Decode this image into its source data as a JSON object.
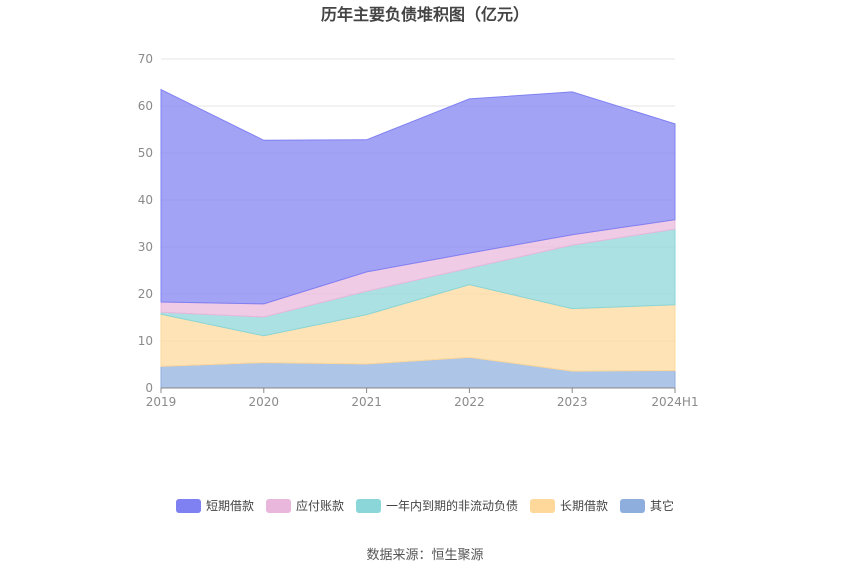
{
  "chart_data": {
    "type": "area",
    "stacked": true,
    "title": "历年主要负债堆积图（亿元）",
    "categories": [
      "2019",
      "2020",
      "2021",
      "2022",
      "2023",
      "2024H1"
    ],
    "ylim": [
      0,
      70
    ],
    "yticks": [
      0,
      10,
      20,
      30,
      40,
      50,
      60,
      70
    ],
    "grid": true,
    "legend_position": "bottom",
    "series": [
      {
        "name": "其它",
        "values": [
          4.6,
          5.4,
          5.1,
          6.5,
          3.6,
          3.7
        ],
        "color": "#8eaede"
      },
      {
        "name": "长期借款",
        "values": [
          11.1,
          5.7,
          10.5,
          15.5,
          13.3,
          14.0
        ],
        "color": "#fdd89a"
      },
      {
        "name": "一年内到期的非流动负债",
        "values": [
          0.4,
          4.0,
          5.0,
          3.5,
          13.5,
          16.1
        ],
        "color": "#8ad6d8"
      },
      {
        "name": "应付账款",
        "values": [
          2.2,
          2.8,
          4.1,
          3.2,
          2.2,
          2.0
        ],
        "color": "#eab7dc"
      },
      {
        "name": "短期借款",
        "values": [
          45.2,
          34.8,
          28.1,
          32.8,
          30.4,
          20.4
        ],
        "color": "#7f80f2"
      }
    ],
    "legend_order": [
      "短期借款",
      "应付账款",
      "一年内到期的非流动负债",
      "长期借款",
      "其它"
    ]
  },
  "source": "数据来源：恒生聚源"
}
